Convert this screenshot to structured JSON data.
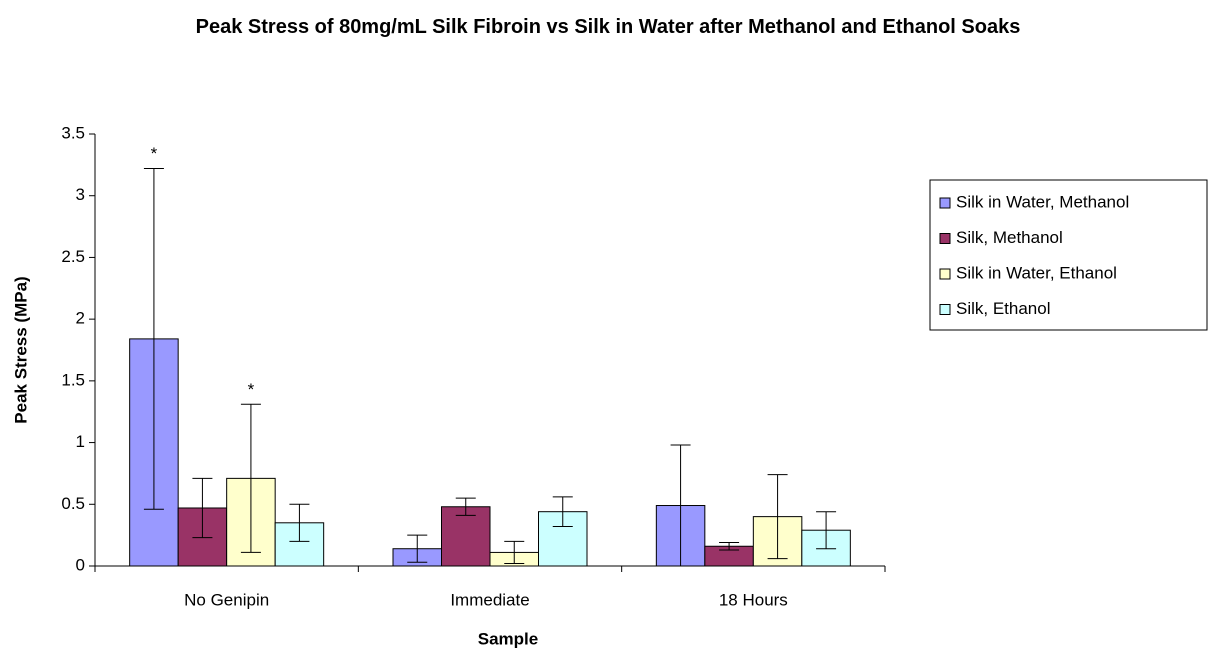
{
  "chart_data": {
    "type": "bar",
    "title": "Peak Stress of 80mg/mL Silk Fibroin vs Silk in Water after Methanol and Ethanol Soaks",
    "x_label": "Sample",
    "y_label": "Peak Stress (MPa)",
    "categories": [
      "No Genipin",
      "Immediate",
      "18 Hours"
    ],
    "series": [
      {
        "name": "Silk in Water, Methanol",
        "color": "#9999ff",
        "values": [
          1.84,
          0.14,
          0.49
        ],
        "errors": [
          1.38,
          0.11,
          0.49
        ],
        "annotations": [
          "*",
          null,
          null
        ]
      },
      {
        "name": "Silk, Methanol",
        "color": "#993366",
        "values": [
          0.47,
          0.48,
          0.16
        ],
        "errors": [
          0.24,
          0.07,
          0.03
        ]
      },
      {
        "name": "Silk in Water, Ethanol",
        "color": "#ffffcc",
        "values": [
          0.71,
          0.11,
          0.4
        ],
        "errors": [
          0.6,
          0.09,
          0.34
        ],
        "annotations": [
          "*",
          null,
          null
        ]
      },
      {
        "name": "Silk, Ethanol",
        "color": "#ccffff",
        "values": [
          0.35,
          0.44,
          0.29
        ],
        "errors": [
          0.15,
          0.12,
          0.15
        ]
      }
    ],
    "ylim": [
      0,
      3.5
    ],
    "yticks": [
      0,
      0.5,
      1,
      1.5,
      2,
      2.5,
      3,
      3.5
    ],
    "grid": false,
    "legend": "right"
  }
}
